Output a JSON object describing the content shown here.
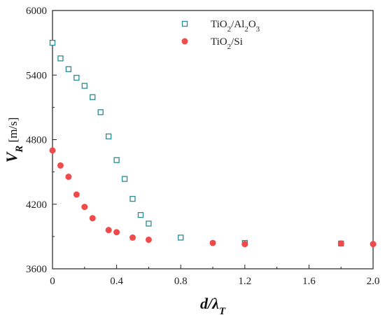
{
  "chart_data": {
    "type": "scatter",
    "xlabel": {
      "main": "d/λ",
      "sub": "T"
    },
    "ylabel": {
      "main": "V",
      "sub": "R",
      "unit": " [m/s]"
    },
    "xlim": [
      0,
      2.0
    ],
    "ylim": [
      3600,
      6000
    ],
    "xticks": [
      0,
      0.4,
      0.8,
      1.2,
      1.6,
      2.0
    ],
    "xtick_labels": [
      "0",
      "0.4",
      "0.8",
      "1.2",
      "1.6",
      "2.0"
    ],
    "yticks": [
      3600,
      4200,
      4800,
      5400,
      6000
    ],
    "ytick_labels": [
      "3600",
      "4200",
      "4800",
      "5400",
      "6000"
    ],
    "legend_position": "top-center",
    "series": [
      {
        "name": "TiO2/Al2O3",
        "legend_parts": [
          [
            "TiO",
            false
          ],
          [
            "2",
            true
          ],
          [
            "/Al",
            false
          ],
          [
            "2",
            true
          ],
          [
            "O",
            false
          ],
          [
            "3",
            true
          ]
        ],
        "marker": "open-square",
        "color": "#2a8a96",
        "points": [
          [
            0.0,
            5700
          ],
          [
            0.05,
            5555
          ],
          [
            0.1,
            5455
          ],
          [
            0.15,
            5375
          ],
          [
            0.2,
            5300
          ],
          [
            0.25,
            5195
          ],
          [
            0.3,
            5055
          ],
          [
            0.35,
            4830
          ],
          [
            0.4,
            4610
          ],
          [
            0.45,
            4435
          ],
          [
            0.5,
            4250
          ],
          [
            0.55,
            4100
          ],
          [
            0.6,
            4020
          ],
          [
            0.8,
            3890
          ],
          [
            1.2,
            3840
          ],
          [
            1.8,
            3835
          ]
        ]
      },
      {
        "name": "TiO2/Si",
        "legend_parts": [
          [
            "TiO",
            false
          ],
          [
            "2",
            true
          ],
          [
            "/Si",
            false
          ]
        ],
        "marker": "filled-circle",
        "color": "#f04a4a",
        "points": [
          [
            0.0,
            4700
          ],
          [
            0.05,
            4560
          ],
          [
            0.1,
            4455
          ],
          [
            0.15,
            4290
          ],
          [
            0.2,
            4175
          ],
          [
            0.25,
            4070
          ],
          [
            0.35,
            3960
          ],
          [
            0.4,
            3940
          ],
          [
            0.5,
            3890
          ],
          [
            0.6,
            3870
          ],
          [
            1.0,
            3840
          ],
          [
            1.2,
            3830
          ],
          [
            1.8,
            3835
          ],
          [
            2.0,
            3830
          ]
        ]
      }
    ]
  }
}
